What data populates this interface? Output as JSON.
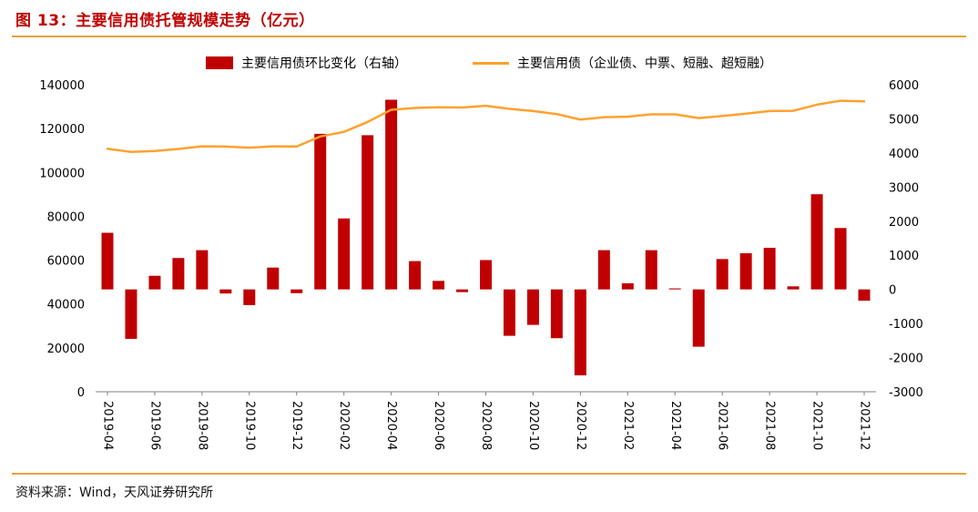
{
  "header": {
    "title": "图 13：主要信用债托管规模走势（亿元）"
  },
  "legend": [
    {
      "label": "主要信用债环比变化（右轴）",
      "marker": "bar-swatch"
    },
    {
      "label": "主要信用债（企业债、中票、短融、超短融）",
      "marker": "line-swatch"
    }
  ],
  "footer": {
    "source": "资料来源：Wind，天风证券研究所"
  },
  "colors": {
    "title": "#C00000",
    "bar": "#C00000",
    "line": "#FFA12E",
    "rule": "#E9A23B",
    "axis": "#808080",
    "text": "#000000"
  },
  "chart_data": {
    "type": "combo",
    "title": "主要信用债托管规模走势（亿元）",
    "grid": false,
    "legend_position": "top",
    "categories": [
      "2019-04",
      "2019-05",
      "2019-06",
      "2019-07",
      "2019-08",
      "2019-09",
      "2019-10",
      "2019-11",
      "2019-12",
      "2020-01",
      "2020-02",
      "2020-03",
      "2020-04",
      "2020-05",
      "2020-06",
      "2020-07",
      "2020-08",
      "2020-09",
      "2020-10",
      "2020-11",
      "2020-12",
      "2021-01",
      "2021-02",
      "2021-03",
      "2021-04",
      "2021-05",
      "2021-06",
      "2021-07",
      "2021-08",
      "2021-09",
      "2021-10",
      "2021-11",
      "2021-12"
    ],
    "x_label_every": 2,
    "left_axis": {
      "min": 0,
      "max": 140000,
      "step": 20000,
      "applies_to": "主要信用债（企业债、中票、短融、超短融）"
    },
    "right_axis": {
      "min": -3000,
      "max": 6000,
      "step": 1000,
      "applies_to": "主要信用债环比变化（右轴）"
    },
    "series": [
      {
        "name": "主要信用债环比变化（右轴）",
        "type": "bar",
        "axis": "right",
        "color": "#C00000",
        "values": [
          1660,
          -1450,
          400,
          920,
          1150,
          -120,
          -460,
          640,
          -110,
          4560,
          2080,
          4520,
          5560,
          830,
          250,
          -80,
          860,
          -1360,
          -1040,
          -1430,
          -2520,
          1150,
          180,
          1150,
          30,
          -1680,
          890,
          1060,
          1220,
          90,
          2790,
          1800,
          -330
        ]
      },
      {
        "name": "主要信用债（企业债、中票、短融、超短融）",
        "type": "line",
        "axis": "left",
        "color": "#FFA12E",
        "values": [
          110800,
          109350,
          109800,
          110700,
          111900,
          111800,
          111300,
          111900,
          111800,
          116400,
          118500,
          123000,
          128600,
          129400,
          129700,
          129600,
          130400,
          129000,
          128000,
          126600,
          124100,
          125200,
          125400,
          126500,
          126500,
          124800,
          125700,
          126800,
          128000,
          128100,
          130900,
          132700,
          132400
        ]
      }
    ]
  }
}
